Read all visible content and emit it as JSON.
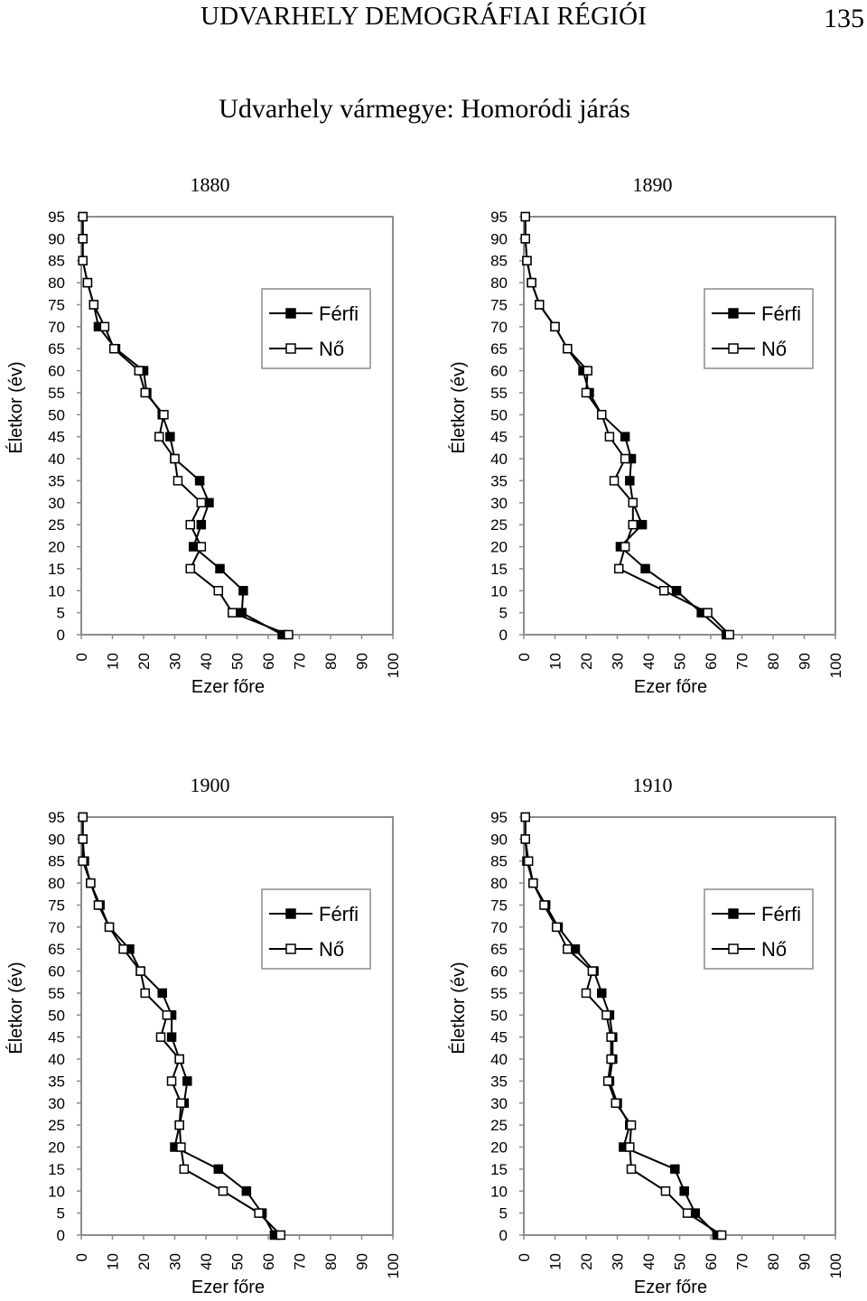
{
  "header": {
    "running_title": "UDVARHELY DEMOGRÁFIAI RÉGIÓI",
    "page_number": "135"
  },
  "figure": {
    "title": "Udvarhely vármegye: Homoródi járás"
  },
  "colors": {
    "male_marker_fill": "#000000",
    "female_marker_fill": "#ffffff",
    "line": "#000000"
  },
  "chart_data": [
    {
      "type": "line",
      "title": "1880",
      "xlabel": "Ezer főre",
      "ylabel": "Életkor (év)",
      "xlim": [
        0,
        100
      ],
      "ylim": [
        0,
        95
      ],
      "x_ticks": [
        "0",
        "10",
        "20",
        "30",
        "40",
        "50",
        "60",
        "70",
        "80",
        "90",
        "100"
      ],
      "y_ticks": [
        "0",
        "5",
        "10",
        "15",
        "20",
        "25",
        "30",
        "35",
        "40",
        "45",
        "50",
        "55",
        "60",
        "65",
        "70",
        "75",
        "80",
        "85",
        "90",
        "95"
      ],
      "legend": [
        "Férfi",
        "Nő"
      ],
      "legend_position": "top-right",
      "grid": false,
      "categories": [
        0,
        5,
        10,
        15,
        20,
        25,
        30,
        35,
        40,
        45,
        50,
        55,
        60,
        65,
        70,
        75,
        80,
        85,
        90,
        95
      ],
      "series": [
        {
          "name": "Férfi",
          "marker": "filled-square",
          "values": [
            64.5,
            51.5,
            52,
            44.5,
            36,
            38.5,
            41,
            38,
            30,
            28.5,
            26,
            21,
            20,
            11,
            5.5,
            4,
            2,
            0.5,
            0.5,
            0.5
          ]
        },
        {
          "name": "Nő",
          "marker": "open-square",
          "values": [
            66.5,
            48.5,
            44,
            35,
            38.5,
            35,
            38.5,
            31,
            30,
            25,
            26.5,
            20.5,
            18.5,
            10.5,
            7.5,
            4,
            2,
            0.5,
            0.5,
            0.5
          ]
        }
      ]
    },
    {
      "type": "line",
      "title": "1890",
      "xlabel": "Ezer főre",
      "ylabel": "Életkor (év)",
      "xlim": [
        0,
        100
      ],
      "ylim": [
        0,
        95
      ],
      "x_ticks": [
        "0",
        "10",
        "20",
        "30",
        "40",
        "50",
        "60",
        "70",
        "80",
        "90",
        "100"
      ],
      "y_ticks": [
        "0",
        "5",
        "10",
        "15",
        "20",
        "25",
        "30",
        "35",
        "40",
        "45",
        "50",
        "55",
        "60",
        "65",
        "70",
        "75",
        "80",
        "85",
        "90",
        "95"
      ],
      "legend": [
        "Férfi",
        "Nő"
      ],
      "legend_position": "top-right",
      "grid": false,
      "categories": [
        0,
        5,
        10,
        15,
        20,
        25,
        30,
        35,
        40,
        45,
        50,
        55,
        60,
        65,
        70,
        75,
        80,
        85,
        90,
        95
      ],
      "series": [
        {
          "name": "Férfi",
          "marker": "filled-square",
          "values": [
            65,
            57,
            49,
            39,
            31,
            38,
            35,
            34,
            34.5,
            32.5,
            25,
            21,
            19,
            14,
            10,
            5,
            2.5,
            1,
            0.5,
            0.5
          ]
        },
        {
          "name": "Nő",
          "marker": "open-square",
          "values": [
            66,
            59,
            45,
            30.5,
            32.5,
            35,
            35,
            29,
            32.5,
            27.5,
            25,
            20,
            20.5,
            14,
            10,
            5,
            2.5,
            1,
            0.5,
            0.5
          ]
        }
      ]
    },
    {
      "type": "line",
      "title": "1900",
      "xlabel": "Ezer főre",
      "ylabel": "Életkor (év)",
      "xlim": [
        0,
        100
      ],
      "ylim": [
        0,
        95
      ],
      "x_ticks": [
        "0",
        "10",
        "20",
        "30",
        "40",
        "50",
        "60",
        "70",
        "80",
        "90",
        "100"
      ],
      "y_ticks": [
        "0",
        "5",
        "10",
        "15",
        "20",
        "25",
        "30",
        "35",
        "40",
        "45",
        "50",
        "55",
        "60",
        "65",
        "70",
        "75",
        "80",
        "85",
        "90",
        "95"
      ],
      "legend": [
        "Férfi",
        "Nő"
      ],
      "legend_position": "top-right",
      "grid": false,
      "categories": [
        0,
        5,
        10,
        15,
        20,
        25,
        30,
        35,
        40,
        45,
        50,
        55,
        60,
        65,
        70,
        75,
        80,
        85,
        90,
        95
      ],
      "series": [
        {
          "name": "Férfi",
          "marker": "filled-square",
          "values": [
            62,
            58,
            53,
            44,
            30,
            31.5,
            33,
            34,
            31.5,
            29,
            29,
            26,
            19,
            15.5,
            9,
            6,
            3,
            1,
            0.5,
            0.5
          ]
        },
        {
          "name": "Nő",
          "marker": "open-square",
          "values": [
            64,
            57,
            45.5,
            33,
            32,
            31.5,
            32,
            29,
            31.5,
            25.5,
            27.5,
            20.5,
            19,
            13.5,
            9,
            5.5,
            3,
            0.5,
            0.5,
            0.5
          ]
        }
      ]
    },
    {
      "type": "line",
      "title": "1910",
      "xlabel": "Ezer főre",
      "ylabel": "Életkor (év)",
      "xlim": [
        0,
        100
      ],
      "ylim": [
        0,
        95
      ],
      "x_ticks": [
        "0",
        "10",
        "20",
        "30",
        "40",
        "50",
        "60",
        "70",
        "80",
        "90",
        "100"
      ],
      "y_ticks": [
        "0",
        "5",
        "10",
        "15",
        "20",
        "25",
        "30",
        "35",
        "40",
        "45",
        "50",
        "55",
        "60",
        "65",
        "70",
        "75",
        "80",
        "85",
        "90",
        "95"
      ],
      "legend": [
        "Férfi",
        "Nő"
      ],
      "legend_position": "top-right",
      "grid": false,
      "categories": [
        0,
        5,
        10,
        15,
        20,
        25,
        30,
        35,
        40,
        45,
        50,
        55,
        60,
        65,
        70,
        75,
        80,
        85,
        90,
        95
      ],
      "series": [
        {
          "name": "Férfi",
          "marker": "filled-square",
          "values": [
            62,
            55,
            51.5,
            48.5,
            32,
            34,
            30,
            27.5,
            28.5,
            28.5,
            27.5,
            25,
            22.5,
            16.5,
            11,
            7,
            3,
            1,
            0.5,
            0.5
          ]
        },
        {
          "name": "Nő",
          "marker": "open-square",
          "values": [
            63.5,
            52.5,
            45.5,
            34.5,
            34,
            34.5,
            29.5,
            27,
            28,
            28,
            26.5,
            20,
            22,
            14,
            10.5,
            6.5,
            3,
            1.5,
            0.5,
            0.5
          ]
        }
      ]
    }
  ]
}
